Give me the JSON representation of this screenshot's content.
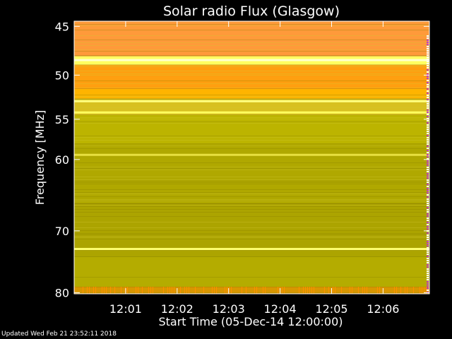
{
  "chart_data": {
    "type": "heatmap",
    "title": "Solar radio Flux (Glasgow)",
    "xlabel": "Start Time (05-Dec-14 12:00:00)",
    "ylabel": "Frequency [MHz]",
    "x_tick_labels": [
      "12:01",
      "12:02",
      "12:03",
      "12:04",
      "12:05",
      "12:06"
    ],
    "x_tick_minutes": [
      1,
      2,
      3,
      4,
      5,
      6
    ],
    "x_range_minutes": [
      0,
      6.9
    ],
    "y_tick_values": [
      45,
      50,
      55,
      60,
      70,
      80
    ],
    "y_scale": "log",
    "ylim": [
      44.5,
      80.2
    ],
    "bands": [
      {
        "from": 44.5,
        "to": 48.0,
        "color": "#ff9a3a"
      },
      {
        "from": 48.0,
        "to": 48.9,
        "color": "#ffff60"
      },
      {
        "from": 48.9,
        "to": 51.5,
        "color": "#ff9f10"
      },
      {
        "from": 51.5,
        "to": 52.6,
        "color": "#ffb400"
      },
      {
        "from": 52.6,
        "to": 54.5,
        "color": "#d8c020"
      },
      {
        "from": 54.5,
        "to": 58.0,
        "color": "#bcb400"
      },
      {
        "from": 58.0,
        "to": 66.0,
        "color": "#b0a800"
      },
      {
        "from": 66.0,
        "to": 74.0,
        "color": "#aca400"
      },
      {
        "from": 74.0,
        "to": 79.0,
        "color": "#b4ac00"
      },
      {
        "from": 79.0,
        "to": 80.2,
        "color": "#d89600"
      }
    ],
    "bright_lines": [
      {
        "freq": 48.4,
        "color": "#ffffd0"
      },
      {
        "freq": 52.9,
        "color": "#ffff80"
      },
      {
        "freq": 54.2,
        "color": "#ffff60"
      },
      {
        "freq": 59.4,
        "color": "#e8e040"
      },
      {
        "freq": 72.8,
        "color": "#ffff70"
      }
    ]
  },
  "footer": {
    "updated": "Updated Wed Feb 21 23:52:11 2018"
  }
}
